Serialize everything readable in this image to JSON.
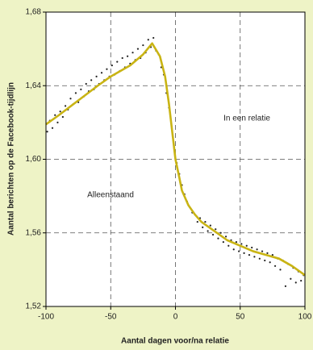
{
  "chart_data": {
    "type": "scatter",
    "x_label": "Aantal dagen voor/na relatie",
    "y_label": "Aantal berichten op de Facebook-tijdlijn",
    "annotations": [
      "In een relatie",
      "Alleenstaand"
    ],
    "xlim": [
      -100,
      100
    ],
    "xticks": [
      -100,
      -50,
      0,
      50,
      100
    ],
    "ylim": [
      1.52,
      1.68
    ],
    "yticks": [
      {
        "value": 1.52,
        "label": "1,52"
      },
      {
        "value": 1.56,
        "label": "1,56"
      },
      {
        "value": 1.6,
        "label": "1,60"
      },
      {
        "value": 1.64,
        "label": "1,64"
      },
      {
        "value": 1.68,
        "label": "1,68"
      }
    ],
    "grid": true,
    "series": [
      {
        "mode": "markers",
        "color": "#222222",
        "x": [
          -99,
          -97,
          -95,
          -93,
          -91,
          -89,
          -87,
          -85,
          -83,
          -81,
          -79,
          -77,
          -75,
          -73,
          -71,
          -69,
          -67,
          -65,
          -63,
          -61,
          -59,
          -57,
          -55,
          -53,
          -51,
          -49,
          -47,
          -45,
          -43,
          -41,
          -39,
          -37,
          -35,
          -33,
          -31,
          -29,
          -27,
          -25,
          -23,
          -21,
          -19,
          -17,
          -15,
          -13,
          -11,
          -9,
          -7,
          -5,
          -3,
          -1,
          1,
          3,
          5,
          7,
          9,
          11,
          13,
          15,
          17,
          19,
          21,
          23,
          25,
          27,
          29,
          31,
          33,
          35,
          37,
          39,
          41,
          43,
          45,
          47,
          49,
          51,
          53,
          55,
          57,
          59,
          61,
          63,
          65,
          67,
          69,
          71,
          73,
          75,
          77,
          79,
          81,
          83,
          85,
          87,
          89,
          91,
          93,
          95,
          97,
          99
        ],
        "y": [
          1.615,
          1.621,
          1.617,
          1.624,
          1.62,
          1.626,
          1.623,
          1.629,
          1.627,
          1.633,
          1.63,
          1.636,
          1.631,
          1.638,
          1.634,
          1.641,
          1.637,
          1.643,
          1.638,
          1.645,
          1.641,
          1.647,
          1.643,
          1.649,
          1.645,
          1.651,
          1.646,
          1.653,
          1.648,
          1.655,
          1.65,
          1.656,
          1.652,
          1.658,
          1.654,
          1.66,
          1.655,
          1.662,
          1.658,
          1.665,
          1.661,
          1.666,
          1.659,
          1.657,
          1.65,
          1.646,
          1.636,
          1.628,
          1.618,
          1.606,
          1.598,
          1.592,
          1.586,
          1.581,
          1.577,
          1.574,
          1.571,
          1.57,
          1.566,
          1.568,
          1.563,
          1.566,
          1.561,
          1.564,
          1.559,
          1.562,
          1.557,
          1.56,
          1.555,
          1.558,
          1.553,
          1.556,
          1.551,
          1.555,
          1.55,
          1.554,
          1.549,
          1.553,
          1.548,
          1.552,
          1.547,
          1.551,
          1.546,
          1.55,
          1.545,
          1.549,
          1.544,
          1.548,
          1.542,
          1.546,
          1.54,
          1.545,
          1.531,
          1.543,
          1.535,
          1.541,
          1.533,
          1.539,
          1.534,
          1.537
        ]
      },
      {
        "mode": "line",
        "color": "#c9b414",
        "x": [
          -100,
          -90,
          -75,
          -60,
          -50,
          -35,
          -25,
          -18,
          -12,
          -8,
          -5,
          -2,
          0,
          3,
          5,
          10,
          15,
          20,
          30,
          40,
          50,
          60,
          70,
          80,
          90,
          100
        ],
        "y": [
          1.619,
          1.624,
          1.632,
          1.64,
          1.645,
          1.651,
          1.657,
          1.663,
          1.656,
          1.645,
          1.63,
          1.612,
          1.6,
          1.59,
          1.583,
          1.575,
          1.57,
          1.566,
          1.561,
          1.556,
          1.553,
          1.55,
          1.548,
          1.546,
          1.542,
          1.537
        ]
      }
    ]
  }
}
